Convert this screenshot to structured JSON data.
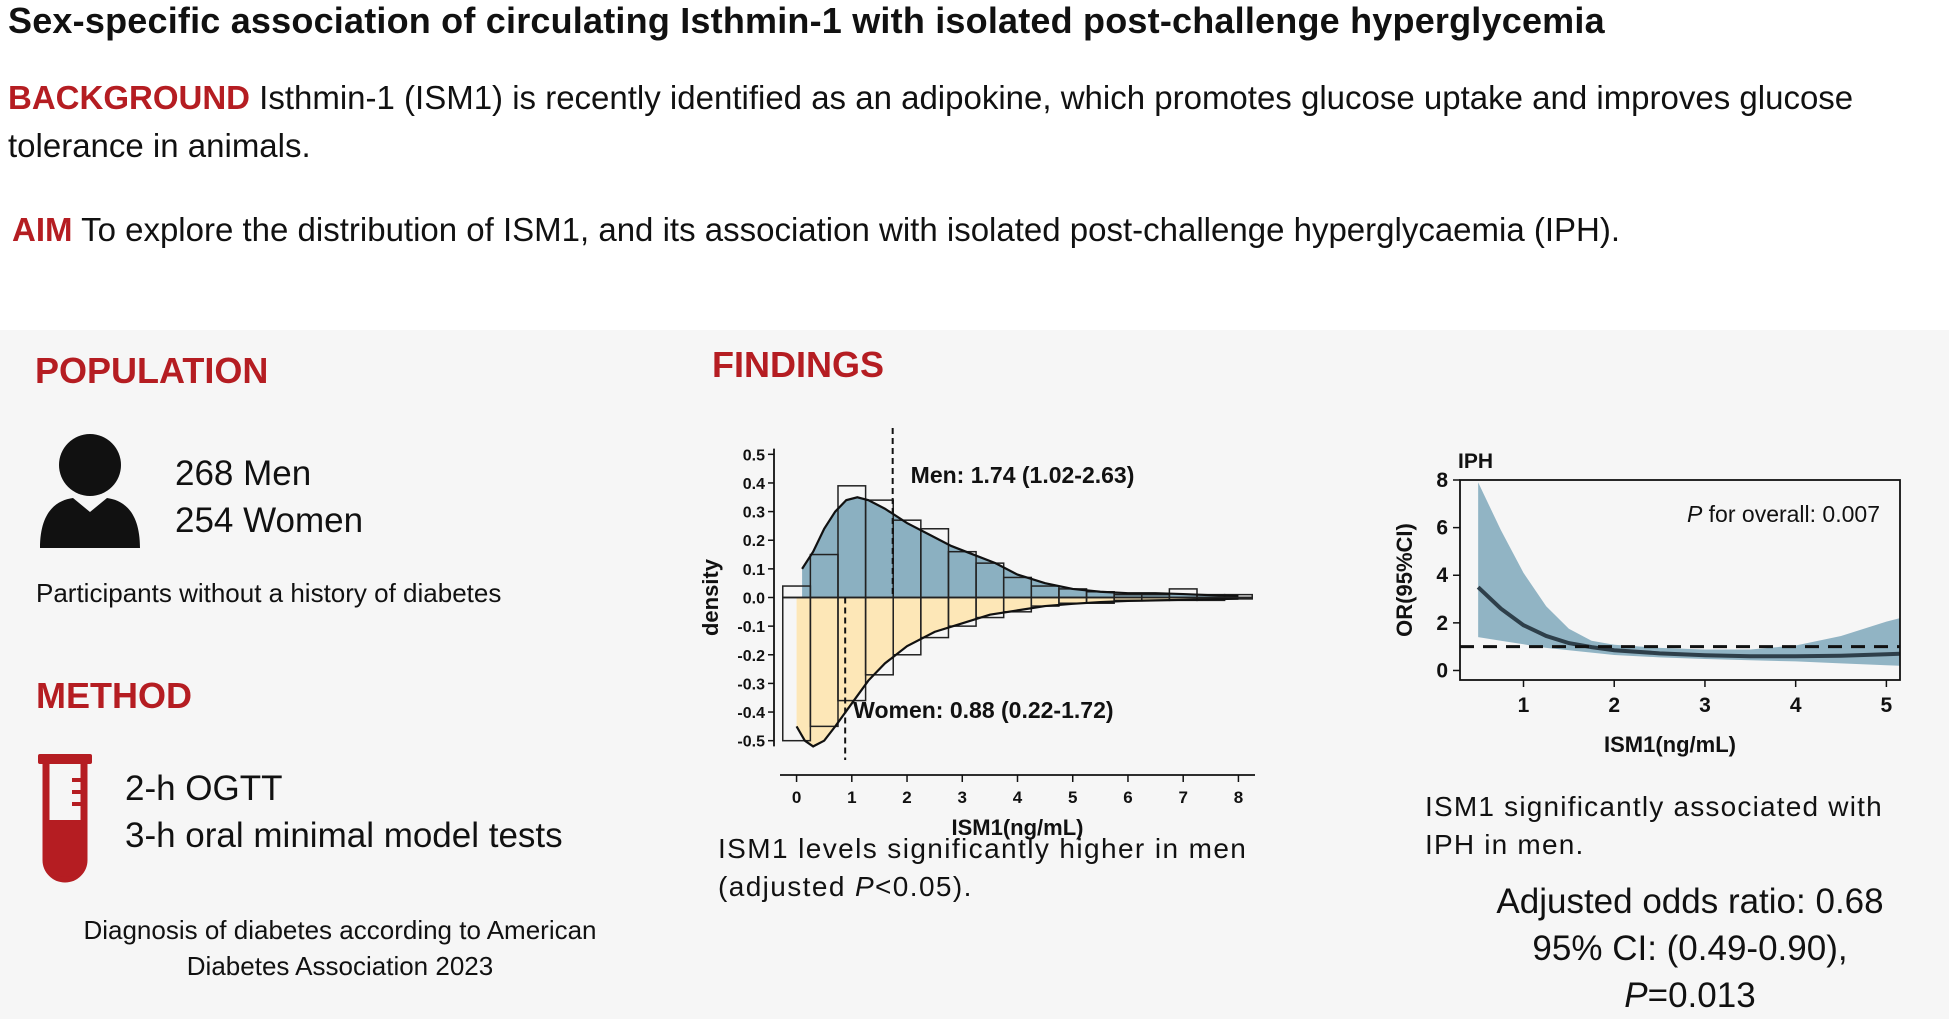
{
  "title": "Sex-specific association of circulating Isthmin-1 with isolated post-challenge hyperglycemia",
  "background": {
    "label": "BACKGROUND",
    "text": "Isthmin-1 (ISM1) is recently identified as an adipokine, which promotes glucose uptake and improves glucose tolerance in animals."
  },
  "aim": {
    "label": "AIM",
    "text": "To explore the distribution of ISM1, and its association with isolated post-challenge hyperglycaemia (IPH)."
  },
  "population": {
    "heading": "POPULATION",
    "men": "268 Men",
    "women": "254 Women",
    "note": "Participants without a history of diabetes"
  },
  "method": {
    "heading": "METHOD",
    "test1": "2-h OGTT",
    "test2": "3-h oral minimal model tests",
    "note_line1": "Diagnosis of diabetes according to American",
    "note_line2": "Diabetes Association 2023"
  },
  "findings": {
    "heading": "FINDINGS",
    "caption_line1": "ISM1 levels significantly higher in men",
    "caption_pre": "(adjusted ",
    "caption_p": "P",
    "caption_post": "<0.05)."
  },
  "iph": {
    "caption_line1": "ISM1 significantly associated with",
    "caption_line2": "IPH in men.",
    "result_line1": "Adjusted odds ratio: 0.68",
    "result_line2": "95% CI: (0.49-0.90),",
    "result_p": "P",
    "result_pval": "=0.013"
  },
  "colors": {
    "accent_red": "#b51d22",
    "men_fill": "#7fa8bb",
    "women_fill": "#fde6b3",
    "ci_band": "#7fa8bb",
    "curve": "#2e3f4a"
  },
  "chart_data": [
    {
      "type": "histogram",
      "title": "",
      "xlabel": "ISM1(ng/mL)",
      "ylabel": "density",
      "xlim": [
        -0.3,
        8.3
      ],
      "ylim": [
        -0.55,
        0.55
      ],
      "xticks": [
        "0",
        "1",
        "2",
        "3",
        "4",
        "5",
        "6",
        "7",
        "8"
      ],
      "yticks": [
        "0.5",
        "0.4",
        "0.3",
        "0.2",
        "0.1",
        "0.0",
        "-0.1",
        "-0.2",
        "-0.3",
        "-0.4",
        "-0.5"
      ],
      "bin_width": 0.5,
      "bin_starts": [
        -0.25,
        0.25,
        0.75,
        1.25,
        1.75,
        2.25,
        2.75,
        3.25,
        3.75,
        4.25,
        4.75,
        5.25,
        5.75,
        6.25,
        6.75,
        7.25,
        7.75
      ],
      "series": [
        {
          "name": "Men",
          "hist": [
            0.04,
            0.15,
            0.39,
            0.34,
            0.27,
            0.24,
            0.16,
            0.12,
            0.07,
            0.04,
            0.03,
            0.02,
            0.01,
            0.01,
            0.03,
            0.01,
            0.01
          ],
          "density_x": [
            0.1,
            0.3,
            0.5,
            0.7,
            0.9,
            1.1,
            1.3,
            1.6,
            2.0,
            2.4,
            2.8,
            3.2,
            3.6,
            4.0,
            4.5,
            5.0,
            5.5,
            6.0,
            6.5,
            7.0,
            7.5,
            8.0
          ],
          "density_y": [
            0.1,
            0.16,
            0.24,
            0.3,
            0.34,
            0.35,
            0.34,
            0.31,
            0.26,
            0.22,
            0.18,
            0.15,
            0.12,
            0.08,
            0.05,
            0.03,
            0.02,
            0.015,
            0.015,
            0.012,
            0.008,
            0.005
          ],
          "median": 1.74,
          "annotation": "Men: 1.74 (1.02-2.63)"
        },
        {
          "name": "Women",
          "hist": [
            -0.5,
            -0.45,
            -0.36,
            -0.27,
            -0.2,
            -0.14,
            -0.1,
            -0.07,
            -0.05,
            -0.03,
            -0.02,
            -0.02,
            -0.01,
            -0.01,
            -0.01,
            -0.01,
            -0.005
          ],
          "density_x": [
            0.0,
            0.15,
            0.3,
            0.5,
            0.7,
            1.0,
            1.3,
            1.6,
            2.0,
            2.5,
            3.0,
            3.5,
            4.0,
            4.5,
            5.0,
            5.5,
            6.0,
            6.5,
            7.0,
            7.5,
            8.0
          ],
          "density_y": [
            -0.45,
            -0.5,
            -0.52,
            -0.5,
            -0.45,
            -0.37,
            -0.29,
            -0.23,
            -0.17,
            -0.12,
            -0.09,
            -0.06,
            -0.045,
            -0.03,
            -0.022,
            -0.016,
            -0.012,
            -0.01,
            -0.008,
            -0.006,
            -0.004
          ],
          "median": 0.88,
          "annotation": "Women: 0.88 (0.22-1.72)"
        }
      ]
    },
    {
      "type": "line",
      "title": "IPH",
      "xlabel": "ISM1(ng/mL)",
      "ylabel": "OR(95%CI)",
      "xlim": [
        0.3,
        5.15
      ],
      "ylim": [
        -0.4,
        8
      ],
      "xticks": [
        "1",
        "2",
        "3",
        "4",
        "5"
      ],
      "yticks": [
        "8",
        "6",
        "4",
        "2",
        "0"
      ],
      "reference_line": 1,
      "annotation_p": "P",
      "annotation": " for overall: 0.007",
      "x": [
        0.5,
        0.75,
        1.0,
        1.25,
        1.5,
        1.75,
        2.0,
        2.5,
        3.0,
        3.5,
        4.0,
        4.5,
        5.0,
        5.15
      ],
      "or": [
        3.5,
        2.6,
        1.9,
        1.45,
        1.15,
        0.98,
        0.85,
        0.72,
        0.64,
        0.6,
        0.6,
        0.62,
        0.68,
        0.7
      ],
      "ci_low": [
        1.4,
        1.25,
        1.1,
        0.95,
        0.85,
        0.75,
        0.65,
        0.55,
        0.48,
        0.43,
        0.38,
        0.3,
        0.22,
        0.2
      ],
      "ci_high": [
        7.9,
        5.9,
        4.1,
        2.7,
        1.75,
        1.25,
        1.08,
        0.95,
        0.88,
        0.88,
        1.05,
        1.45,
        2.05,
        2.2
      ]
    }
  ]
}
